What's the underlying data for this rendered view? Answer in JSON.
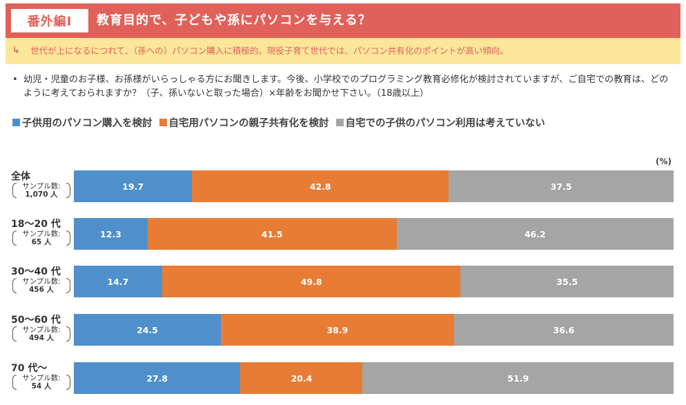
{
  "header": {
    "tag": "番外編Ⅰ",
    "title": "教育目的で、子どもや孫にパソコンを与える？"
  },
  "summary": {
    "icon": "arrow-return-icon",
    "text": "世代が上になるにつれて、（孫への）パソコン購入に積極的。現役子育て世代では、パソコン共有化のポイントが高い傾向。"
  },
  "question": {
    "bullet": "•",
    "text": "幼児・児童のお子様、お孫様がいらっしゃる方にお聞きします。今後、小学校でのプログラミング教育必修化が検討されていますが、ご自宅での教育は、どのように考えておられますか？（子、孫いないと取った場合）×年齢をお聞かせ下さい。（18歳以上）"
  },
  "chart_data": {
    "type": "bar",
    "orientation": "horizontal",
    "stacked": true,
    "unit": "(%)",
    "xlim": [
      0,
      100
    ],
    "legend_position": "top",
    "categories": [
      {
        "label": "全体",
        "sample_label": "サンプル数:",
        "sample_count": "1,070 人"
      },
      {
        "label": "18～20 代",
        "sample_label": "サンプル数:",
        "sample_count": "65 人"
      },
      {
        "label": "30～40 代",
        "sample_label": "サンプル数:",
        "sample_count": "456 人"
      },
      {
        "label": "50～60 代",
        "sample_label": "サンプル数:",
        "sample_count": "494 人"
      },
      {
        "label": "70 代～",
        "sample_label": "サンプル数:",
        "sample_count": "54 人"
      }
    ],
    "series": [
      {
        "name": "子供用のパソコン購入を検討",
        "color": "#4f8fcb",
        "values": [
          19.7,
          12.3,
          14.7,
          24.5,
          27.8
        ]
      },
      {
        "name": "自宅用パソコンの親子共有化を検討",
        "color": "#e87c35",
        "values": [
          42.8,
          41.5,
          49.8,
          38.9,
          20.4
        ]
      },
      {
        "name": "自宅での子供のパソコン利用は考えていない",
        "color": "#a5a5a5",
        "values": [
          37.5,
          46.2,
          35.5,
          36.6,
          51.9
        ]
      }
    ]
  }
}
